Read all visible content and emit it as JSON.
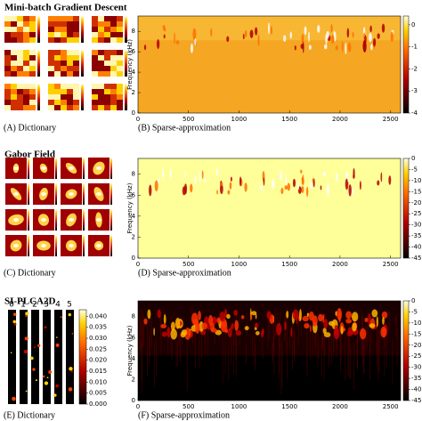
{
  "panels": [
    {
      "title": "Mini-batch Gradient Descent",
      "dictionary": {
        "caption": "(A) Dictionary"
      },
      "spectrogram": {
        "caption": "(B) Sparse-approximation",
        "y_label": "Frequency (kHz)",
        "xlim": [
          0,
          2600
        ],
        "xticks": [
          0,
          500,
          1000,
          1500,
          2000,
          2500
        ],
        "ylim": [
          0,
          9.5
        ],
        "yticks": [
          0,
          2,
          4,
          6,
          8
        ],
        "clim": [
          -4,
          0.4
        ],
        "cticks": [
          0,
          -1,
          -2,
          -3,
          -4
        ]
      }
    },
    {
      "title": "Gabor Field",
      "dictionary": {
        "caption": "(C) Dictionary"
      },
      "spectrogram": {
        "caption": "(D) Sparse-approximation",
        "y_label": "Frequency (kHz)",
        "xlim": [
          0,
          2600
        ],
        "xticks": [
          0,
          500,
          1000,
          1500,
          2000,
          2500
        ],
        "ylim": [
          0,
          9.5
        ],
        "yticks": [
          0,
          2,
          4,
          6,
          8
        ],
        "clim": [
          -45,
          0
        ],
        "cticks": [
          0,
          -5,
          -10,
          -15,
          -20,
          -25,
          -30,
          -35,
          -40,
          -45
        ]
      }
    },
    {
      "title": "SI-PLCA2D",
      "dictionary": {
        "caption": "(E) Dictionary",
        "labels": [
          0,
          1,
          2,
          3,
          4,
          5
        ],
        "clim": [
          0,
          0.043
        ],
        "cticks": [
          {
            "value": 0,
            "label": "0.000"
          },
          {
            "value": 0.005,
            "label": "0.005"
          },
          {
            "value": 0.01,
            "label": "0.010"
          },
          {
            "value": 0.015,
            "label": "0.015"
          },
          {
            "value": 0.02,
            "label": "0.020"
          },
          {
            "value": 0.025,
            "label": "0.025"
          },
          {
            "value": 0.03,
            "label": "0.030"
          },
          {
            "value": 0.035,
            "label": "0.035"
          },
          {
            "value": 0.04,
            "label": "0.040"
          }
        ]
      },
      "spectrogram": {
        "caption": "(F) Sparse-approximation",
        "y_label": "Frequency (kHz)",
        "xlim": [
          0,
          2600
        ],
        "xticks": [
          0,
          500,
          1000,
          1500,
          2000,
          2500
        ],
        "ylim": [
          0,
          9.5
        ],
        "yticks": [
          0,
          2,
          4,
          6,
          8
        ],
        "clim": [
          -45,
          0
        ],
        "cticks": [
          0,
          -5,
          -10,
          -15,
          -20,
          -25,
          -30,
          -35,
          -40,
          -45
        ]
      }
    }
  ]
}
